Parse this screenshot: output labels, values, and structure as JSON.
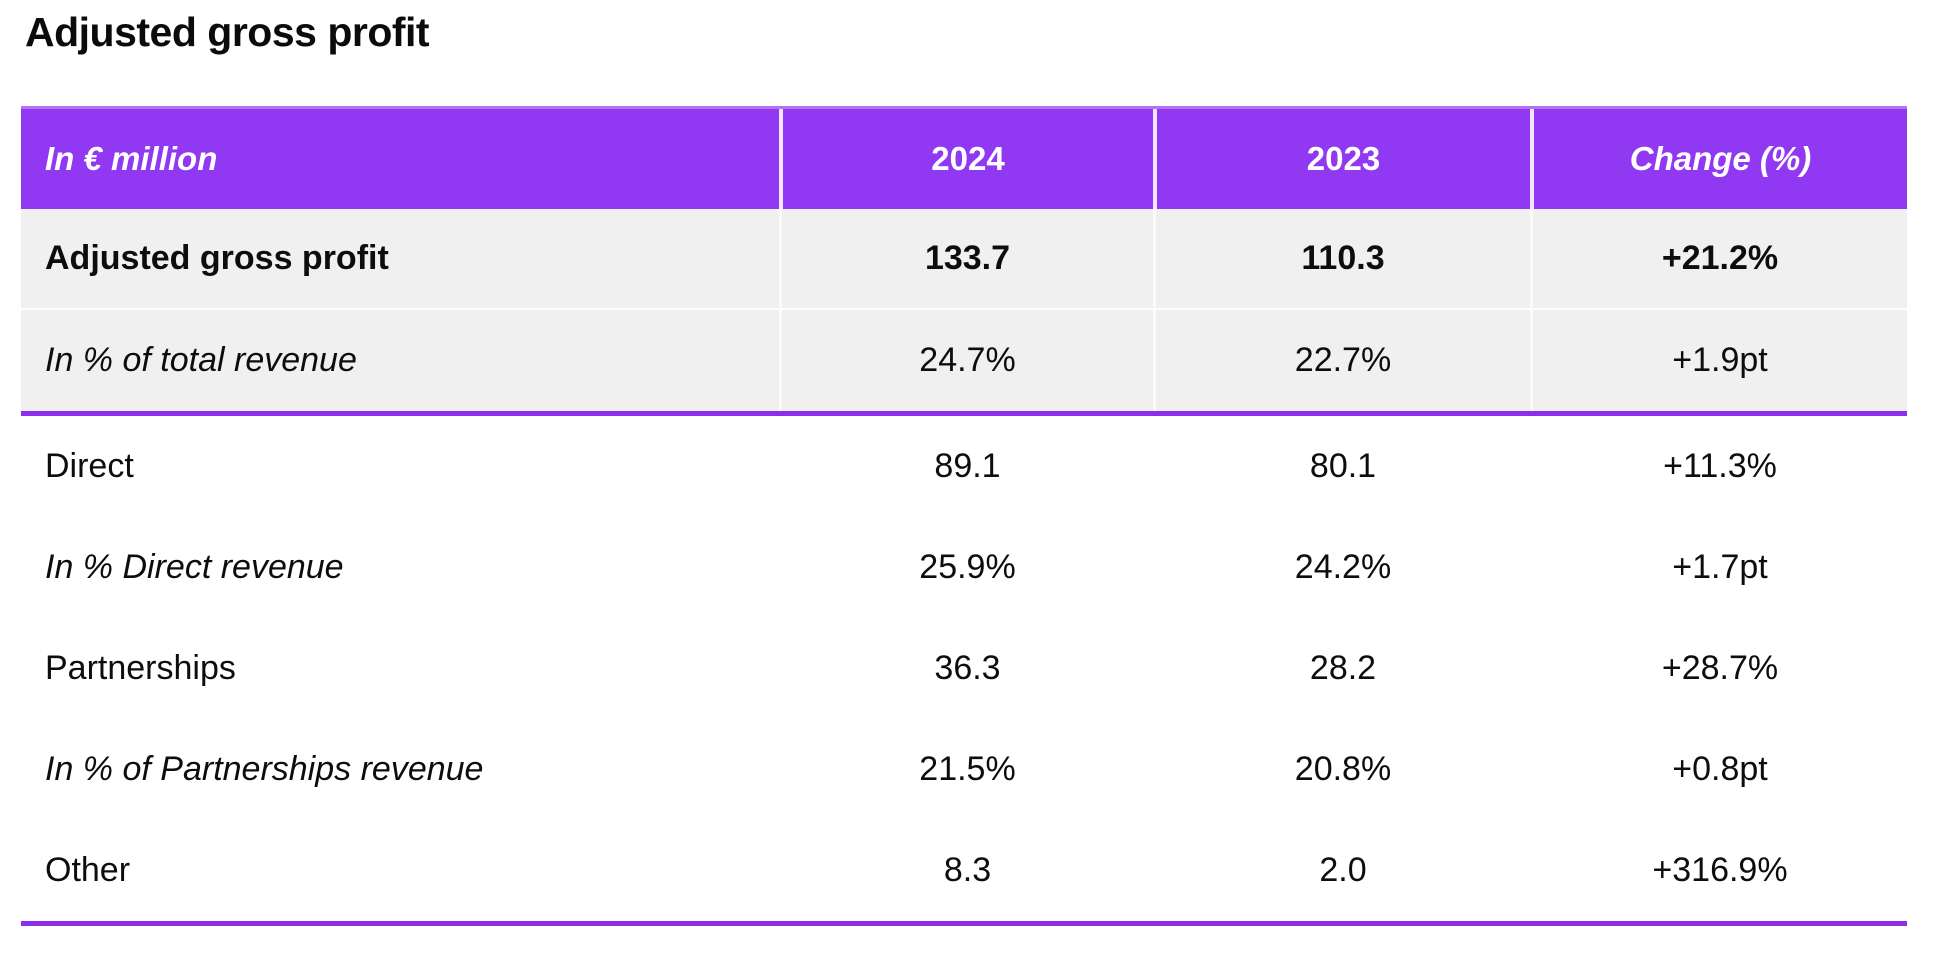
{
  "page_title": "Adjusted gross profit",
  "colors": {
    "header_purple": "#9139F2",
    "divider_purple": "#8C2EEB",
    "row_shade": "#F1F0F1",
    "header_text": "#FFFFFF",
    "body_text": "#0D0D0F"
  },
  "chart_data": {
    "type": "table",
    "title": "Adjusted gross profit",
    "unit_label": "In € million",
    "columns": [
      "In € million",
      "2024",
      "2023",
      "Change (%)"
    ],
    "rows": [
      {
        "label": "Adjusted gross profit",
        "values": [
          "133.7",
          "110.3",
          "+21.2%"
        ],
        "emphasis": "bold",
        "shaded": true
      },
      {
        "label": "In % of total revenue",
        "values": [
          "24.7%",
          "22.7%",
          "+1.9pt"
        ],
        "emphasis": "italic",
        "shaded": true
      },
      {
        "label": "Direct",
        "values": [
          "89.1",
          "80.1",
          "+11.3%"
        ],
        "emphasis": "regular",
        "shaded": false
      },
      {
        "label": "In % Direct revenue",
        "values": [
          "25.9%",
          "24.2%",
          "+1.7pt"
        ],
        "emphasis": "italic",
        "shaded": false
      },
      {
        "label": "Partnerships",
        "values": [
          "36.3",
          "28.2",
          "+28.7%"
        ],
        "emphasis": "regular",
        "shaded": false
      },
      {
        "label": "In % of Partnerships revenue",
        "values": [
          "21.5%",
          "20.8%",
          "+0.8pt"
        ],
        "emphasis": "italic",
        "shaded": false
      },
      {
        "label": "Other",
        "values": [
          "8.3",
          "2.0",
          "+316.9%"
        ],
        "emphasis": "regular",
        "shaded": false
      }
    ],
    "layout_hints": {
      "shaded_divider_after_row": 1,
      "bottom_rule": true,
      "value_alignment": "center"
    }
  }
}
